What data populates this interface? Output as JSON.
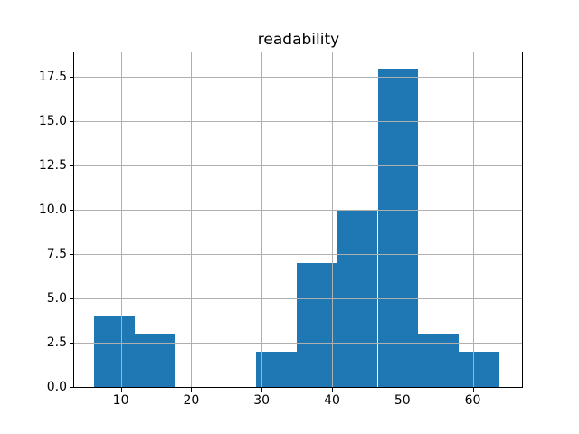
{
  "chart_data": {
    "type": "bar",
    "subtype": "histogram",
    "title": "readability",
    "xlabel": "",
    "ylabel": "",
    "bin_edges": [
      6.2,
      11.96,
      17.71,
      23.47,
      29.23,
      34.99,
      40.74,
      46.5,
      52.26,
      58.02,
      63.77
    ],
    "counts": [
      4,
      3,
      0,
      0,
      2,
      7,
      10,
      18,
      3,
      2
    ],
    "xticks": [
      10,
      20,
      30,
      40,
      50,
      60
    ],
    "xtick_labels": [
      "10",
      "20",
      "30",
      "40",
      "50",
      "60"
    ],
    "yticks": [
      0.0,
      2.5,
      5.0,
      7.5,
      10.0,
      12.5,
      15.0,
      17.5
    ],
    "ytick_labels": [
      "0.0",
      "2.5",
      "5.0",
      "7.5",
      "10.0",
      "12.5",
      "15.0",
      "17.5"
    ],
    "xlim": [
      3.37,
      67.0
    ],
    "ylim": [
      0,
      18.9
    ],
    "grid": true,
    "legend": false,
    "colors": {
      "bar": "#1f77b4",
      "grid": "#b0b0b0",
      "spine": "#000000",
      "text": "#000000",
      "background": "#ffffff"
    }
  }
}
